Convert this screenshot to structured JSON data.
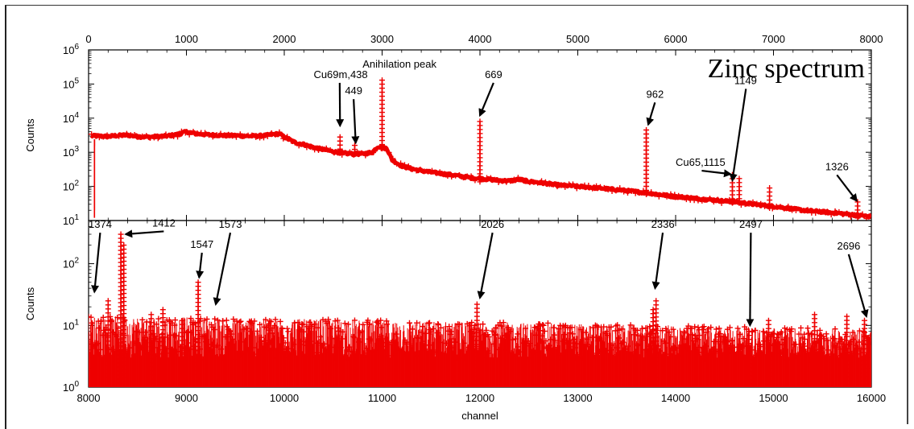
{
  "chart_data": [
    {
      "type": "scatter",
      "title": "Zinc spectrum",
      "ylabel": "Counts",
      "xlabel": "",
      "yscale": "log",
      "xlim": [
        0,
        8000
      ],
      "ylim": [
        10,
        1000000
      ],
      "x_ticks": [
        "0",
        "1000",
        "2000",
        "3000",
        "4000",
        "5000",
        "6000",
        "7000",
        "8000"
      ],
      "y_tick_exponents": [
        "6",
        "5",
        "4",
        "3",
        "2",
        "1"
      ],
      "y_tick_base": "10",
      "series": [
        {
          "color": "#ee0000",
          "marker": "plus",
          "background": [
            [
              30,
              3000
            ],
            [
              100,
              3000
            ],
            [
              200,
              2900
            ],
            [
              300,
              3100
            ],
            [
              400,
              3200
            ],
            [
              500,
              2900
            ],
            [
              600,
              2800
            ],
            [
              700,
              2900
            ],
            [
              800,
              3000
            ],
            [
              900,
              3300
            ],
            [
              1000,
              4000
            ],
            [
              1100,
              3500
            ],
            [
              1200,
              3300
            ],
            [
              1300,
              3200
            ],
            [
              1400,
              3100
            ],
            [
              1500,
              3100
            ],
            [
              1600,
              3000
            ],
            [
              1700,
              3000
            ],
            [
              1800,
              3100
            ],
            [
              1900,
              3400
            ],
            [
              1950,
              3500
            ],
            [
              2000,
              2800
            ],
            [
              2100,
              2000
            ],
            [
              2200,
              1700
            ],
            [
              2300,
              1400
            ],
            [
              2400,
              1200
            ],
            [
              2500,
              1050
            ],
            [
              2600,
              950
            ],
            [
              2700,
              900
            ],
            [
              2800,
              900
            ],
            [
              2900,
              1000
            ],
            [
              2960,
              1500
            ],
            [
              3050,
              1300
            ],
            [
              3100,
              600
            ],
            [
              3200,
              400
            ],
            [
              3300,
              330
            ],
            [
              3400,
              290
            ],
            [
              3500,
              260
            ],
            [
              3600,
              240
            ],
            [
              3700,
              220
            ],
            [
              3800,
              200
            ],
            [
              3900,
              180
            ],
            [
              4000,
              170
            ],
            [
              4100,
              160
            ],
            [
              4200,
              150
            ],
            [
              4300,
              145
            ],
            [
              4400,
              160
            ],
            [
              4500,
              140
            ],
            [
              4600,
              130
            ],
            [
              4700,
              120
            ],
            [
              4800,
              110
            ],
            [
              4900,
              105
            ],
            [
              5000,
              100
            ],
            [
              5100,
              95
            ],
            [
              5200,
              90
            ],
            [
              5300,
              85
            ],
            [
              5400,
              80
            ],
            [
              5500,
              75
            ],
            [
              5600,
              70
            ],
            [
              5700,
              65
            ],
            [
              5800,
              60
            ],
            [
              5900,
              55
            ],
            [
              6000,
              50
            ],
            [
              6100,
              48
            ],
            [
              6200,
              45
            ],
            [
              6300,
              42
            ],
            [
              6400,
              40
            ],
            [
              6500,
              37
            ],
            [
              6600,
              35
            ],
            [
              6700,
              33
            ],
            [
              6800,
              30
            ],
            [
              6900,
              28
            ],
            [
              7000,
              26
            ],
            [
              7100,
              24
            ],
            [
              7200,
              22
            ],
            [
              7300,
              20
            ],
            [
              7400,
              19
            ],
            [
              7500,
              18
            ],
            [
              7600,
              17
            ],
            [
              7700,
              16
            ],
            [
              7800,
              15
            ],
            [
              7900,
              14
            ],
            [
              8000,
              13
            ]
          ],
          "peaks": [
            [
              60,
              12
            ],
            [
              60,
              20
            ],
            [
              60,
              1500
            ],
            [
              2570,
              2800
            ],
            [
              2720,
              1600
            ],
            [
              3000,
              130000
            ],
            [
              4000,
              8000
            ],
            [
              5700,
              4500
            ],
            [
              6580,
              220
            ],
            [
              6650,
              170
            ],
            [
              6960,
              90
            ],
            [
              7860,
              35
            ]
          ]
        }
      ],
      "annotations": [
        {
          "text": "Anihilation peak",
          "x": 2800,
          "y": 300000
        },
        {
          "text": "Cu69m,438",
          "x": 2300,
          "y": 150000,
          "arrow_to": [
            2570,
            6000
          ]
        },
        {
          "text": "449",
          "x": 2620,
          "y": 50000,
          "arrow_to": [
            2730,
            1900
          ]
        },
        {
          "text": "669",
          "x": 4050,
          "y": 150000,
          "arrow_to": [
            4000,
            12000
          ]
        },
        {
          "text": "962",
          "x": 5700,
          "y": 40000,
          "arrow_to": [
            5720,
            6500
          ]
        },
        {
          "text": "Cu65,1115",
          "x": 6000,
          "y": 400,
          "arrow_to": [
            6560,
            230
          ]
        },
        {
          "text": "1149",
          "x": 6600,
          "y": 100000,
          "arrow_to": [
            6580,
            150
          ]
        },
        {
          "text": "1326",
          "x": 7530,
          "y": 300,
          "arrow_to": [
            7850,
            38
          ]
        }
      ]
    },
    {
      "type": "scatter",
      "title": "",
      "ylabel": "Counts",
      "xlabel": "channel",
      "yscale": "log",
      "xlim": [
        8000,
        16000
      ],
      "ylim": [
        1,
        500
      ],
      "x_ticks": [
        "8000",
        "9000",
        "10000",
        "11000",
        "12000",
        "13000",
        "14000",
        "15000",
        "16000"
      ],
      "y_tick_exponents": [
        "2",
        "1",
        "0"
      ],
      "y_tick_base": "10",
      "series": [
        {
          "color": "#ee0000",
          "marker": "plus",
          "background_level": [
            3,
            10
          ],
          "peaks": [
            [
              8330,
              300
            ],
            [
              8360,
              200
            ],
            [
              9120,
              50
            ],
            [
              11970,
              22
            ],
            [
              13800,
              25
            ],
            [
              14750,
              8
            ],
            [
              15930,
              12
            ],
            [
              8640,
              15
            ],
            [
              8960,
              12
            ],
            [
              8200,
              25
            ],
            [
              8760,
              18
            ],
            [
              13770,
              18
            ],
            [
              15420,
              15
            ],
            [
              14950,
              12
            ],
            [
              15750,
              14
            ]
          ]
        }
      ],
      "annotations": [
        {
          "text": "1374",
          "x": 8000,
          "y": 380,
          "arrow_to": [
            8060,
            35
          ]
        },
        {
          "text": "1412",
          "x": 8650,
          "y": 400,
          "arrow_to": [
            8380,
            300
          ]
        },
        {
          "text": "1547",
          "x": 9040,
          "y": 180,
          "arrow_to": [
            9130,
            60
          ]
        },
        {
          "text": "1573",
          "x": 9330,
          "y": 380,
          "arrow_to": [
            9300,
            22
          ]
        },
        {
          "text": "2026",
          "x": 12010,
          "y": 380,
          "arrow_to": [
            12000,
            28
          ]
        },
        {
          "text": "2336",
          "x": 13750,
          "y": 380,
          "arrow_to": [
            13790,
            40
          ]
        },
        {
          "text": "2497",
          "x": 14650,
          "y": 380,
          "arrow_to": [
            14760,
            10
          ]
        },
        {
          "text": "2696",
          "x": 15650,
          "y": 170,
          "arrow_to": [
            15950,
            14
          ]
        }
      ]
    }
  ]
}
